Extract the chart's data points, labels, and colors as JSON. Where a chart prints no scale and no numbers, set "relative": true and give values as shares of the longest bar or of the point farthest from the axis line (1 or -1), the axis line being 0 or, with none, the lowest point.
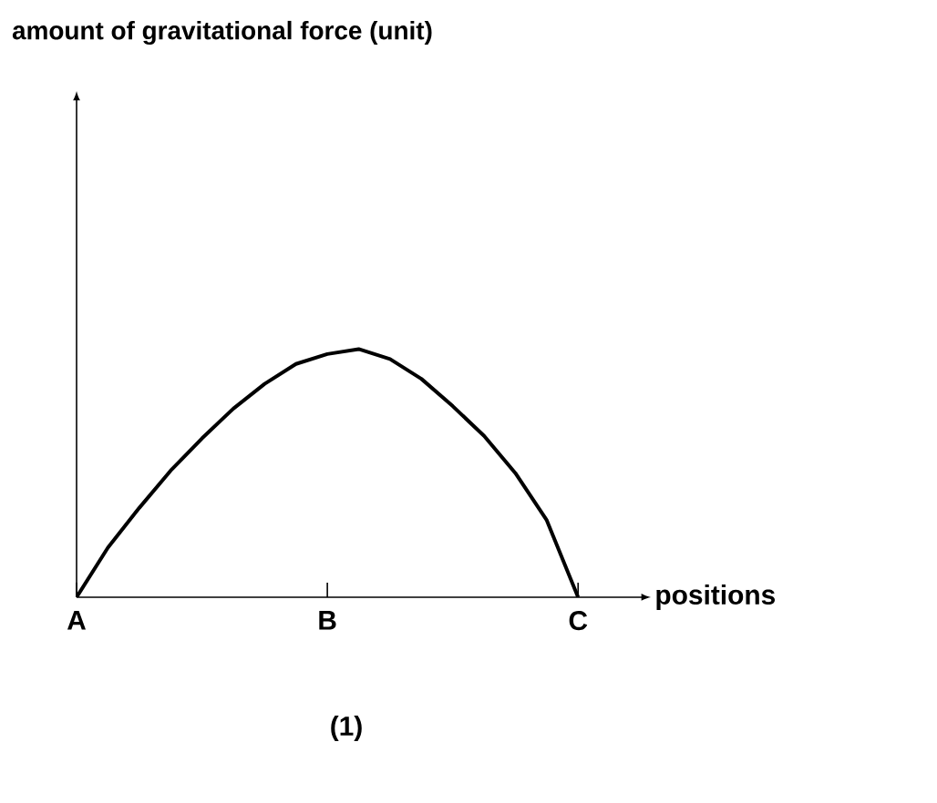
{
  "chart_data": {
    "type": "line",
    "relative": true,
    "xlabel": "positions",
    "categories": [
      "A",
      null,
      null,
      null,
      null,
      null,
      null,
      null,
      "B",
      null,
      null,
      null,
      null,
      null,
      null,
      null,
      "C"
    ],
    "values": [
      0,
      0.2,
      0.36,
      0.51,
      0.64,
      0.76,
      0.86,
      0.94,
      0.98,
      1.0,
      0.96,
      0.88,
      0.77,
      0.65,
      0.5,
      0.31,
      0
    ],
    "color": "#000000",
    "annotations": [
      "amount of gravitational force (unit)",
      "(1)"
    ]
  }
}
